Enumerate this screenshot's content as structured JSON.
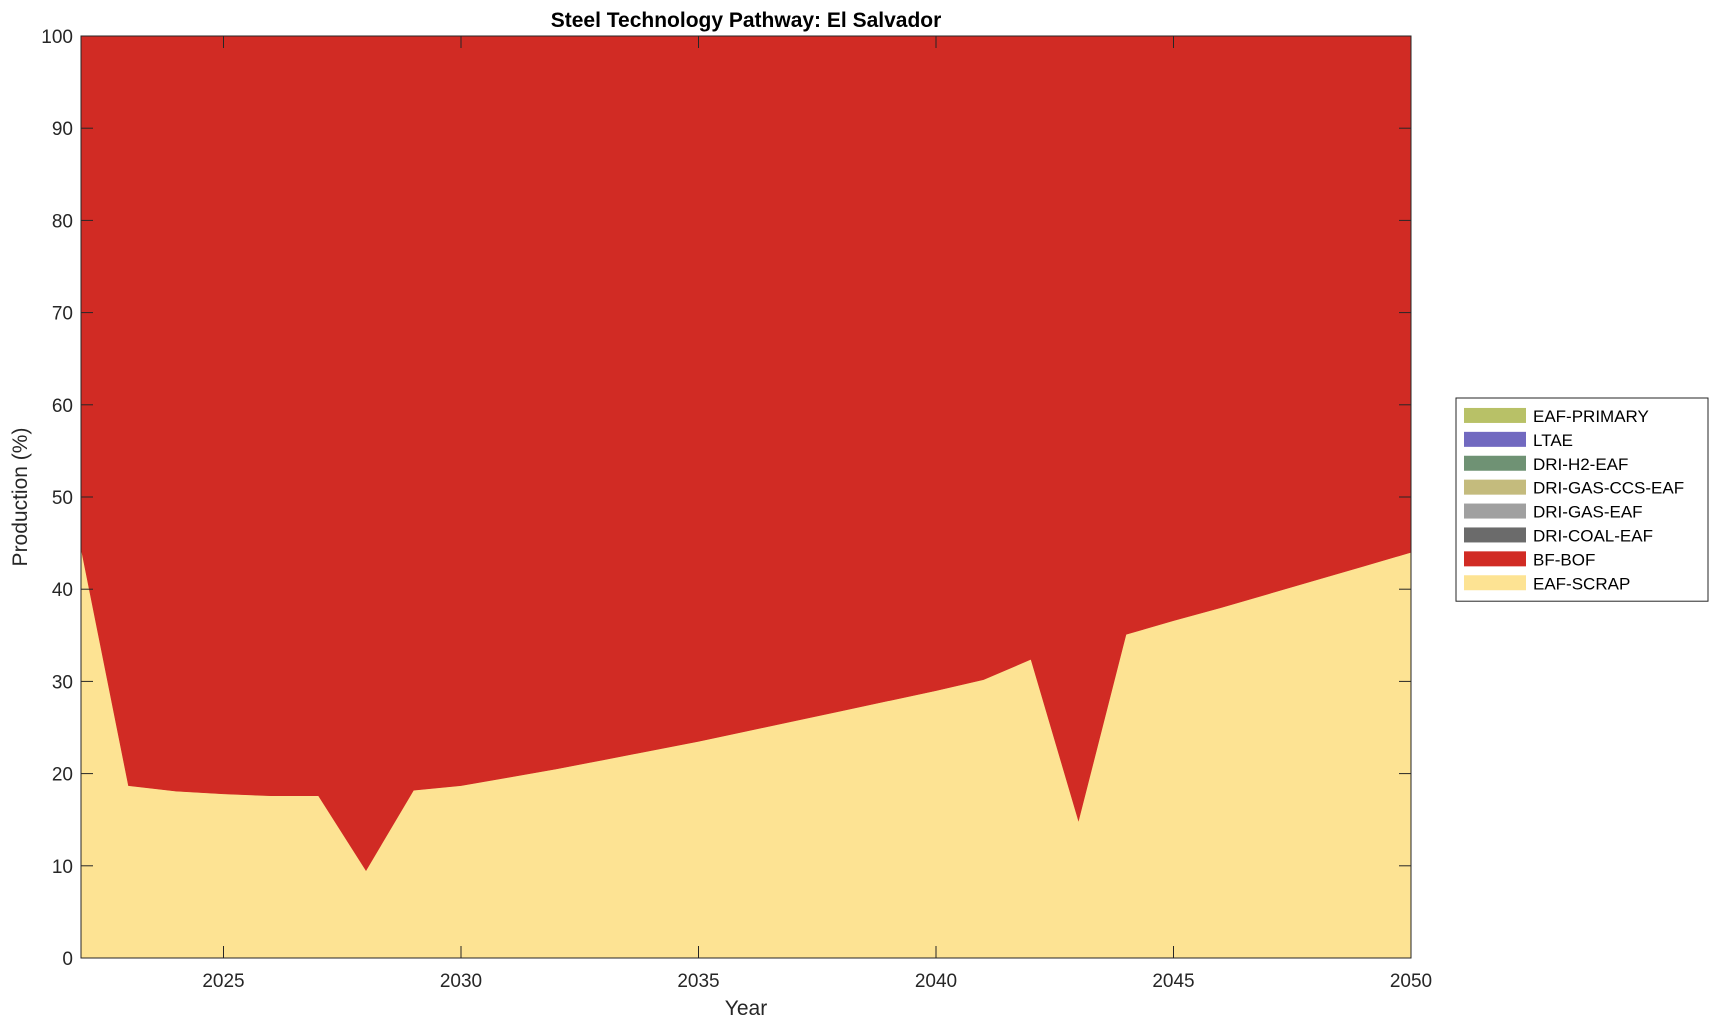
{
  "chart_data": {
    "type": "area",
    "stacked": true,
    "title": "Steel Technology Pathway: El Salvador",
    "xlabel": "Year",
    "ylabel": "Production (%)",
    "xlim": [
      2022,
      2050
    ],
    "ylim": [
      0,
      100
    ],
    "xticks": [
      2025,
      2030,
      2035,
      2040,
      2045,
      2050
    ],
    "yticks": [
      0,
      10,
      20,
      30,
      40,
      50,
      60,
      70,
      80,
      90,
      100
    ],
    "grid": false,
    "legend_position": "right",
    "x": [
      2022,
      2023,
      2024,
      2025,
      2026,
      2027,
      2028,
      2029,
      2030,
      2031,
      2032,
      2033,
      2034,
      2035,
      2036,
      2037,
      2038,
      2039,
      2040,
      2041,
      2042,
      2043,
      2044,
      2045,
      2046,
      2047,
      2048,
      2049,
      2050
    ],
    "series": [
      {
        "name": "EAF-SCRAP",
        "color": "#fde393",
        "values": [
          44.5,
          18.7,
          18.1,
          17.8,
          17.6,
          17.6,
          9.5,
          18.2,
          18.7,
          19.6,
          20.5,
          21.5,
          22.5,
          23.5,
          24.6,
          25.7,
          26.8,
          27.9,
          29.0,
          30.2,
          32.4,
          14.9,
          35.1,
          36.6,
          38.0,
          39.5,
          41.0,
          42.5,
          44.0
        ]
      },
      {
        "name": "BF-BOF",
        "color": "#d12b24",
        "values": [
          55.5,
          81.3,
          81.9,
          82.2,
          82.4,
          82.4,
          90.5,
          81.8,
          81.3,
          80.4,
          79.5,
          78.5,
          77.5,
          76.5,
          75.4,
          74.3,
          73.2,
          72.1,
          71.0,
          69.8,
          67.6,
          85.1,
          64.9,
          63.4,
          62.0,
          60.5,
          59.0,
          57.5,
          56.0
        ]
      },
      {
        "name": "DRI-COAL-EAF",
        "color": "#6b6b6b",
        "values": [
          0,
          0,
          0,
          0,
          0,
          0,
          0,
          0,
          0,
          0,
          0,
          0,
          0,
          0,
          0,
          0,
          0,
          0,
          0,
          0,
          0,
          0,
          0,
          0,
          0,
          0,
          0,
          0,
          0
        ]
      },
      {
        "name": "DRI-GAS-EAF",
        "color": "#a0a0a0",
        "values": [
          0,
          0,
          0,
          0,
          0,
          0,
          0,
          0,
          0,
          0,
          0,
          0,
          0,
          0,
          0,
          0,
          0,
          0,
          0,
          0,
          0,
          0,
          0,
          0,
          0,
          0,
          0,
          0,
          0
        ]
      },
      {
        "name": "DRI-GAS-CCS-EAF",
        "color": "#c4bb7d",
        "values": [
          0,
          0,
          0,
          0,
          0,
          0,
          0,
          0,
          0,
          0,
          0,
          0,
          0,
          0,
          0,
          0,
          0,
          0,
          0,
          0,
          0,
          0,
          0,
          0,
          0,
          0,
          0,
          0,
          0
        ]
      },
      {
        "name": "DRI-H2-EAF",
        "color": "#6f9274",
        "values": [
          0,
          0,
          0,
          0,
          0,
          0,
          0,
          0,
          0,
          0,
          0,
          0,
          0,
          0,
          0,
          0,
          0,
          0,
          0,
          0,
          0,
          0,
          0,
          0,
          0,
          0,
          0,
          0,
          0
        ]
      },
      {
        "name": "LTAE",
        "color": "#7169c0",
        "values": [
          0,
          0,
          0,
          0,
          0,
          0,
          0,
          0,
          0,
          0,
          0,
          0,
          0,
          0,
          0,
          0,
          0,
          0,
          0,
          0,
          0,
          0,
          0,
          0,
          0,
          0,
          0,
          0,
          0
        ]
      },
      {
        "name": "EAF-PRIMARY",
        "color": "#b8c167",
        "values": [
          0,
          0,
          0,
          0,
          0,
          0,
          0,
          0,
          0,
          0,
          0,
          0,
          0,
          0,
          0,
          0,
          0,
          0,
          0,
          0,
          0,
          0,
          0,
          0,
          0,
          0,
          0,
          0,
          0
        ]
      }
    ],
    "legend_order": [
      "EAF-PRIMARY",
      "LTAE",
      "DRI-H2-EAF",
      "DRI-GAS-CCS-EAF",
      "DRI-GAS-EAF",
      "DRI-COAL-EAF",
      "BF-BOF",
      "EAF-SCRAP"
    ]
  }
}
